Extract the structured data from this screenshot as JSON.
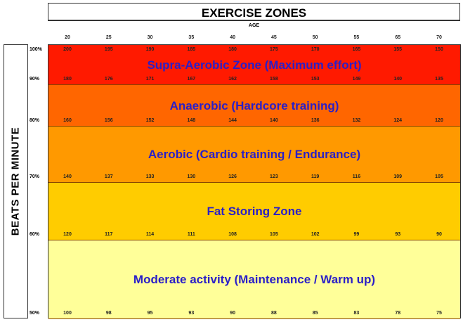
{
  "chart_data": {
    "type": "table",
    "title": "EXERCISE ZONES",
    "xlabel": "AGE",
    "ylabel": "BEATS PER MINUTE",
    "ages": [
      "20",
      "25",
      "30",
      "35",
      "40",
      "45",
      "50",
      "55",
      "65",
      "70"
    ],
    "levels": [
      {
        "pct": "100%",
        "values": [
          200,
          195,
          190,
          185,
          180,
          175,
          170,
          165,
          155,
          150
        ]
      },
      {
        "pct": "90%",
        "values": [
          180,
          176,
          171,
          167,
          162,
          158,
          153,
          149,
          140,
          135
        ]
      },
      {
        "pct": "80%",
        "values": [
          160,
          156,
          152,
          148,
          144,
          140,
          136,
          132,
          124,
          120
        ]
      },
      {
        "pct": "70%",
        "values": [
          140,
          137,
          133,
          130,
          126,
          123,
          119,
          116,
          109,
          105
        ]
      },
      {
        "pct": "60%",
        "values": [
          120,
          117,
          114,
          111,
          108,
          105,
          102,
          99,
          93,
          90
        ]
      },
      {
        "pct": "50%",
        "values": [
          100,
          98,
          95,
          93,
          90,
          88,
          85,
          83,
          78,
          75
        ]
      }
    ],
    "zones": [
      {
        "label": "Supra-Aerobic Zone (Maximum effort)",
        "color": "#ff1a00",
        "range": [
          90,
          100
        ]
      },
      {
        "label": "Anaerobic (Hardcore training)",
        "color": "#ff6600",
        "range": [
          80,
          90
        ]
      },
      {
        "label": "Aerobic (Cardio training / Endurance)",
        "color": "#ff9900",
        "range": [
          70,
          80
        ]
      },
      {
        "label": "Fat Storing Zone",
        "color": "#ffcc00",
        "range": [
          60,
          70
        ]
      },
      {
        "label": "Moderate activity (Maintenance / Warm up)",
        "color": "#ffff99",
        "range": [
          50,
          60
        ]
      }
    ]
  }
}
